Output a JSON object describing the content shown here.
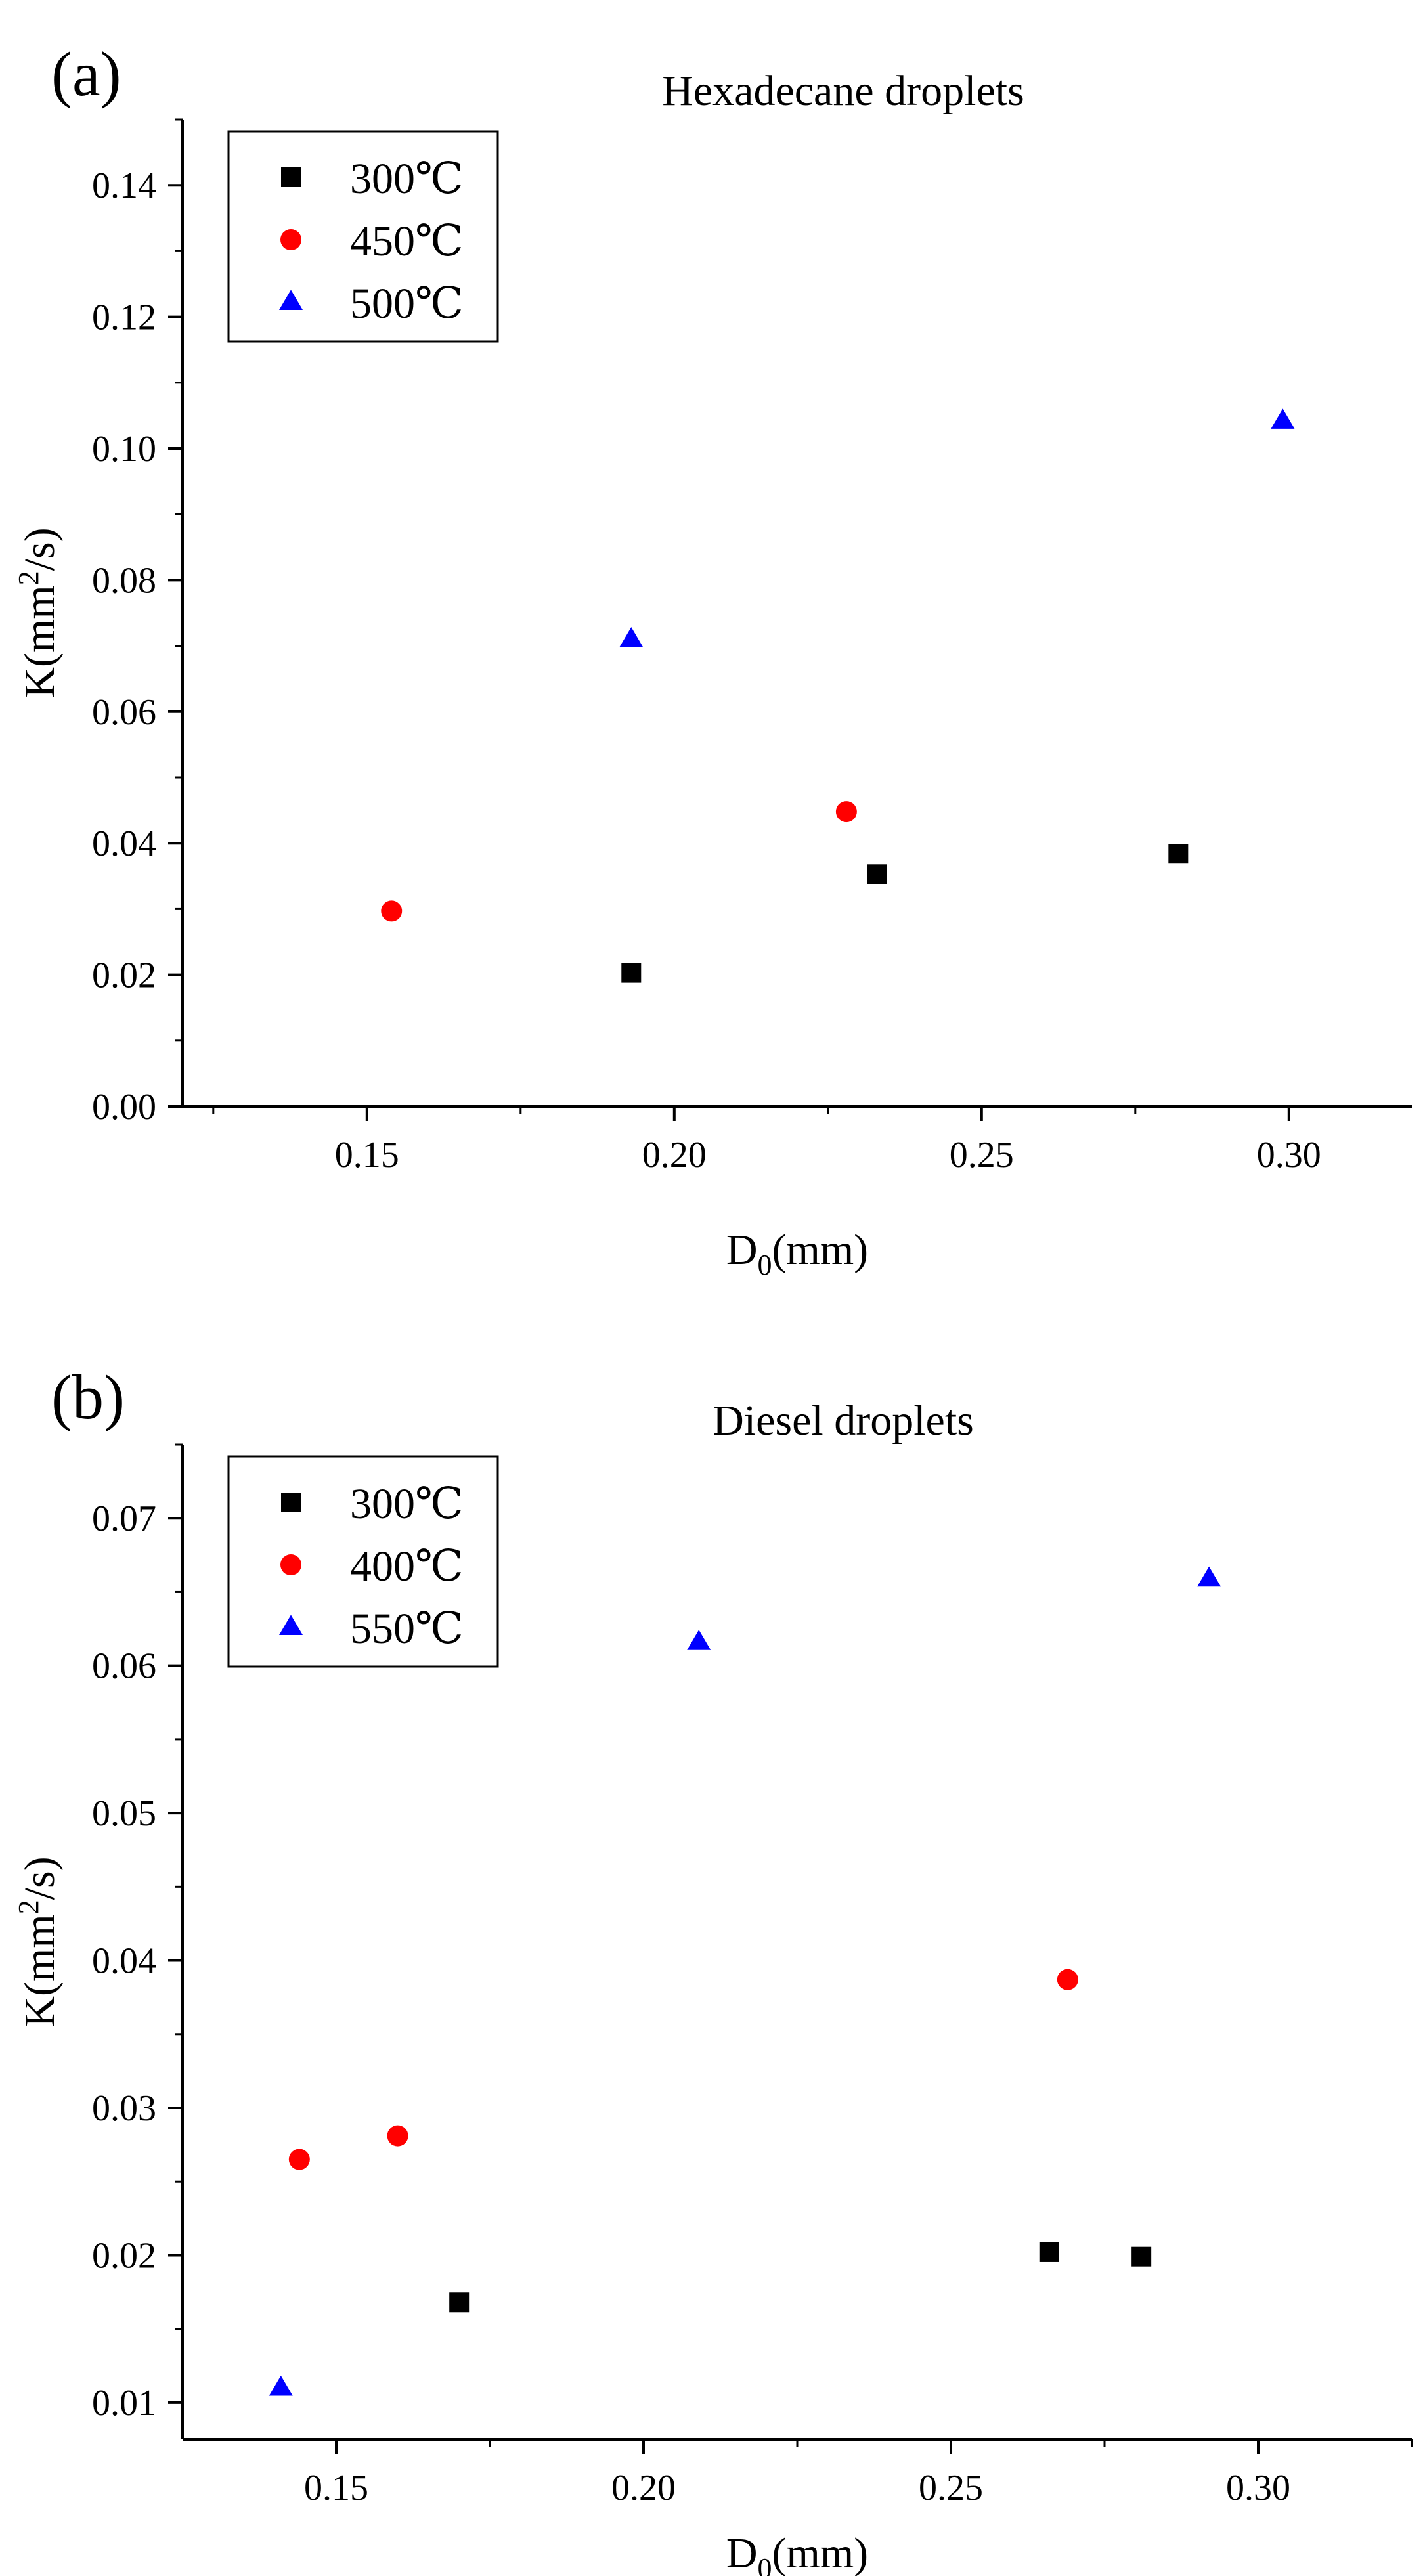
{
  "chart_data": [
    {
      "panel_label": "(a)",
      "type": "scatter",
      "title": "Hexadecane droplets",
      "xlabel": {
        "main": "D",
        "sub": "0",
        "unit": "(mm)"
      },
      "ylabel": {
        "main": "K(mm",
        "sup": "2",
        "unit": "/s)"
      },
      "xlim": [
        0.12,
        0.32
      ],
      "ylim": [
        0.0,
        0.15
      ],
      "xticks": [
        0.15,
        0.2,
        0.25,
        0.3
      ],
      "xtick_labels": [
        "0.15",
        "0.20",
        "0.25",
        "0.30"
      ],
      "yticks": [
        0.0,
        0.02,
        0.04,
        0.06,
        0.08,
        0.1,
        0.12,
        0.14
      ],
      "ytick_labels": [
        "0.00",
        "0.02",
        "0.04",
        "0.06",
        "0.08",
        "0.10",
        "0.12",
        "0.14"
      ],
      "legend_position": "top-left",
      "series": [
        {
          "name": "300℃",
          "marker": "square",
          "color": "#000000",
          "x": [
            0.193,
            0.233,
            0.282
          ],
          "y": [
            0.0203,
            0.0353,
            0.0384
          ]
        },
        {
          "name": "450℃",
          "marker": "circle",
          "color": "#ff0000",
          "x": [
            0.154,
            0.228
          ],
          "y": [
            0.0297,
            0.0448
          ]
        },
        {
          "name": "500℃",
          "marker": "triangle",
          "color": "#0000ff",
          "x": [
            0.193,
            0.299
          ],
          "y": [
            0.071,
            0.1042
          ]
        }
      ]
    },
    {
      "panel_label": "(b)",
      "type": "scatter",
      "title": "Diesel droplets",
      "xlabel": {
        "main": "D",
        "sub": "0",
        "unit": "(mm)"
      },
      "ylabel": {
        "main": "K(mm",
        "sup": "2",
        "unit": "/s)"
      },
      "xlim": [
        0.125,
        0.325
      ],
      "ylim": [
        0.0075,
        0.075
      ],
      "xticks": [
        0.15,
        0.2,
        0.25,
        0.3
      ],
      "xtick_labels": [
        "0.15",
        "0.20",
        "0.25",
        "0.30"
      ],
      "yticks": [
        0.01,
        0.02,
        0.03,
        0.04,
        0.05,
        0.06,
        0.07
      ],
      "ytick_labels": [
        "0.01",
        "0.02",
        "0.03",
        "0.04",
        "0.05",
        "0.06",
        "0.07"
      ],
      "legend_position": "top-left",
      "series": [
        {
          "name": "300℃",
          "marker": "square",
          "color": "#000000",
          "x": [
            0.17,
            0.266,
            0.281
          ],
          "y": [
            0.0168,
            0.0202,
            0.0199
          ]
        },
        {
          "name": "400℃",
          "marker": "circle",
          "color": "#ff0000",
          "x": [
            0.144,
            0.16,
            0.269
          ],
          "y": [
            0.0265,
            0.0281,
            0.0387
          ]
        },
        {
          "name": "550℃",
          "marker": "triangle",
          "color": "#0000ff",
          "x": [
            0.141,
            0.209,
            0.292
          ],
          "y": [
            0.011,
            0.0616,
            0.0659
          ]
        }
      ]
    }
  ]
}
